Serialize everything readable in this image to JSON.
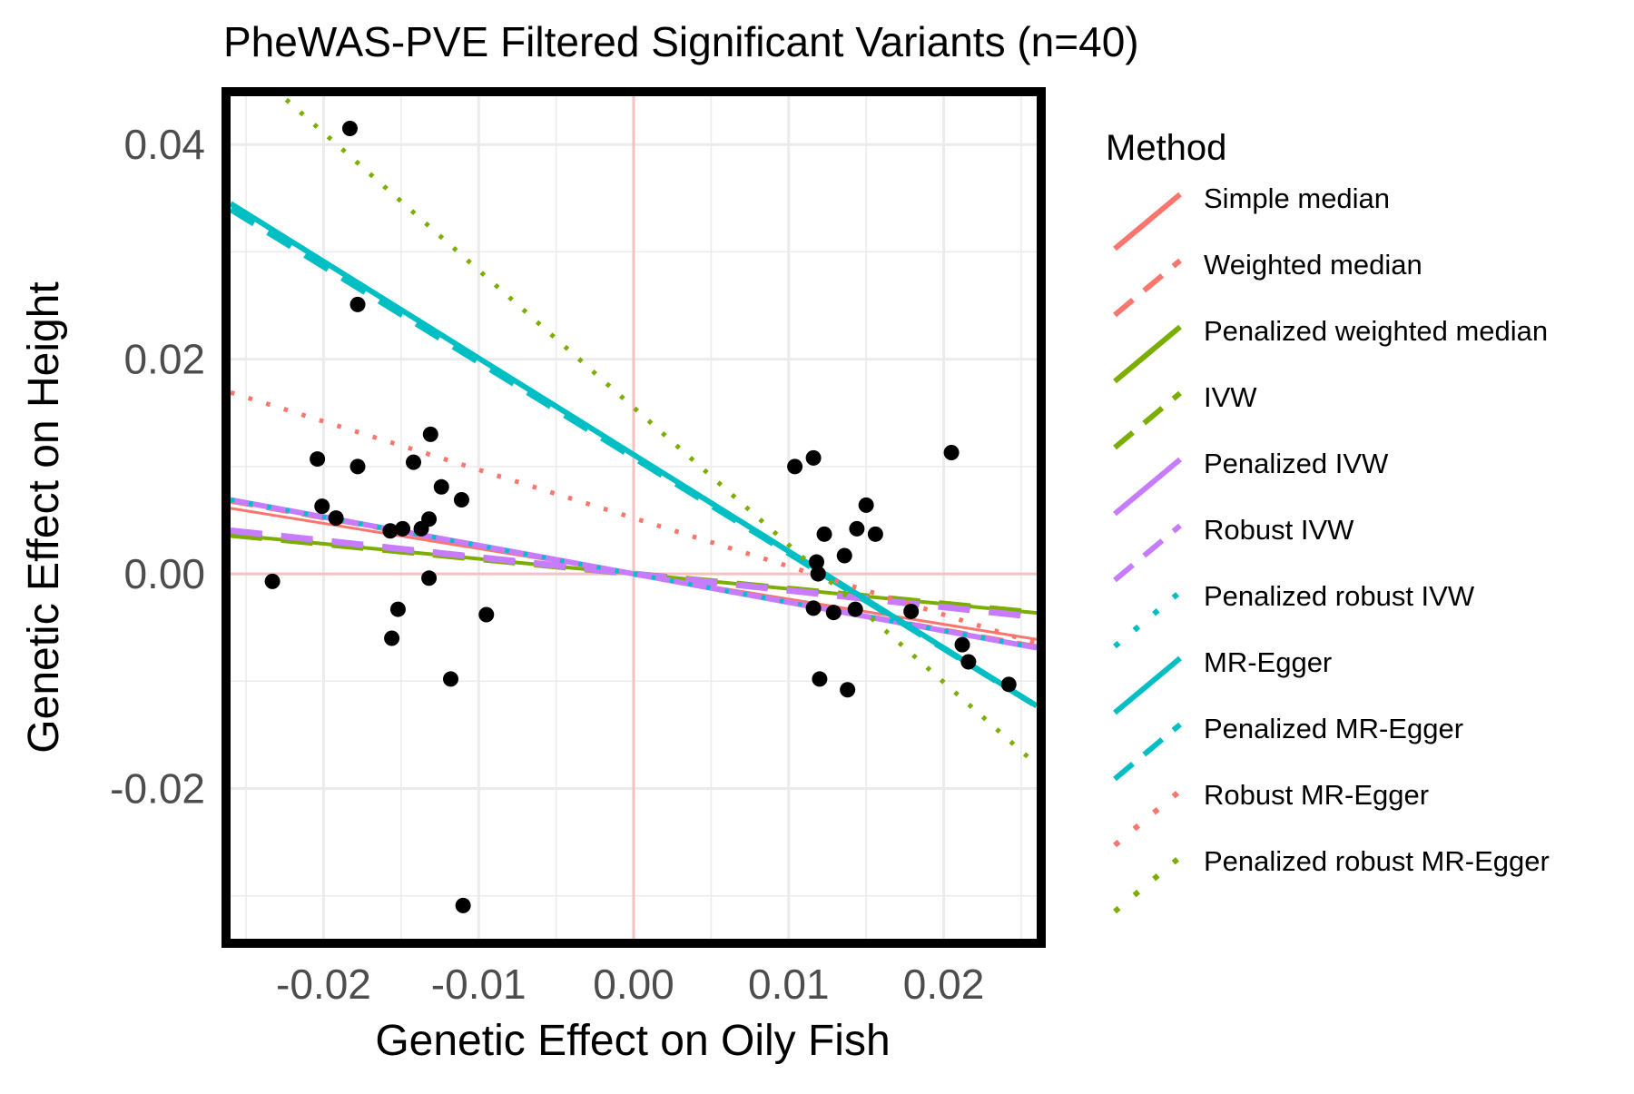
{
  "chart_data": {
    "type": "scatter",
    "title": "PheWAS-PVE Filtered Significant Variants (n=40)",
    "xlabel": "Genetic Effect on Oily Fish",
    "ylabel": "Genetic Effect on Height",
    "xlim": [
      -0.026,
      0.026
    ],
    "ylim": [
      -0.034,
      0.0445
    ],
    "x_ticks": [
      -0.02,
      -0.01,
      0.0,
      0.01,
      0.02
    ],
    "x_tick_labels": [
      "-0.02",
      "-0.01",
      "0.00",
      "0.01",
      "0.02"
    ],
    "y_ticks": [
      -0.02,
      0.0,
      0.02,
      0.04
    ],
    "y_tick_labels": [
      "-0.02",
      "0.00",
      "0.02",
      "0.04"
    ],
    "grid": true,
    "reference_lines": {
      "x": 0,
      "y": 0,
      "color": "#f4c2c2"
    },
    "points": [
      {
        "x": -0.0233,
        "y": -0.0007
      },
      {
        "x": -0.0204,
        "y": 0.0107
      },
      {
        "x": -0.0201,
        "y": 0.0063
      },
      {
        "x": -0.0192,
        "y": 0.0052
      },
      {
        "x": -0.0183,
        "y": 0.0415
      },
      {
        "x": -0.0178,
        "y": 0.0251
      },
      {
        "x": -0.0178,
        "y": 0.01
      },
      {
        "x": -0.0157,
        "y": 0.004
      },
      {
        "x": -0.0156,
        "y": -0.006
      },
      {
        "x": -0.0152,
        "y": -0.0033
      },
      {
        "x": -0.0149,
        "y": 0.0042
      },
      {
        "x": -0.0142,
        "y": 0.0104
      },
      {
        "x": -0.0137,
        "y": 0.0042
      },
      {
        "x": -0.0132,
        "y": 0.0051
      },
      {
        "x": -0.0132,
        "y": -0.0004
      },
      {
        "x": -0.0131,
        "y": 0.013
      },
      {
        "x": -0.0124,
        "y": 0.0081
      },
      {
        "x": -0.0118,
        "y": -0.0098
      },
      {
        "x": -0.0111,
        "y": 0.0069
      },
      {
        "x": -0.011,
        "y": -0.0309
      },
      {
        "x": -0.0095,
        "y": -0.0038
      },
      {
        "x": 0.0104,
        "y": 0.01
      },
      {
        "x": 0.0116,
        "y": 0.0108
      },
      {
        "x": 0.0118,
        "y": 0.0011
      },
      {
        "x": 0.0116,
        "y": -0.0032
      },
      {
        "x": 0.0119,
        "y": 0.0
      },
      {
        "x": 0.012,
        "y": -0.0098
      },
      {
        "x": 0.0123,
        "y": 0.0037
      },
      {
        "x": 0.0129,
        "y": -0.0036
      },
      {
        "x": 0.0136,
        "y": 0.0017
      },
      {
        "x": 0.0138,
        "y": -0.0108
      },
      {
        "x": 0.0143,
        "y": -0.0033
      },
      {
        "x": 0.0144,
        "y": 0.0042
      },
      {
        "x": 0.015,
        "y": 0.0064
      },
      {
        "x": 0.0156,
        "y": 0.0037
      },
      {
        "x": 0.0179,
        "y": -0.0035
      },
      {
        "x": 0.0205,
        "y": 0.0113
      },
      {
        "x": 0.0212,
        "y": -0.0066
      },
      {
        "x": 0.0216,
        "y": -0.0082
      },
      {
        "x": 0.0242,
        "y": -0.0103
      }
    ],
    "legend": {
      "title": "Method",
      "position": "right",
      "entries": [
        {
          "name": "Simple median",
          "color": "#F8766D",
          "dash": "solid"
        },
        {
          "name": "Weighted median",
          "color": "#F8766D",
          "dash": "longdash"
        },
        {
          "name": "Penalized weighted median",
          "color": "#7CAE00",
          "dash": "solid"
        },
        {
          "name": "IVW",
          "color": "#7CAE00",
          "dash": "longdash"
        },
        {
          "name": "Penalized IVW",
          "color": "#C77CFF",
          "dash": "solid"
        },
        {
          "name": "Robust IVW",
          "color": "#C77CFF",
          "dash": "longdash"
        },
        {
          "name": "Penalized robust IVW",
          "color": "#00BFC4",
          "dash": "dotted"
        },
        {
          "name": "MR-Egger",
          "color": "#00BFC4",
          "dash": "solid"
        },
        {
          "name": "Penalized MR-Egger",
          "color": "#00BFC4",
          "dash": "longdash"
        },
        {
          "name": "Robust MR-Egger",
          "color": "#F8766D",
          "dash": "dotted"
        },
        {
          "name": "Penalized robust MR-Egger",
          "color": "#7CAE00",
          "dash": "dotted"
        }
      ]
    },
    "fit_lines": [
      {
        "name": "Simple median",
        "intercept": 0.0,
        "slope": -0.235,
        "color": "#F8766D",
        "dash": "solid",
        "width": 3
      },
      {
        "name": "Weighted median",
        "intercept": 0.0,
        "slope": -0.26,
        "color": "#F8766D",
        "dash": "longdash",
        "width": 5
      },
      {
        "name": "Penalized weighted median",
        "intercept": 0.0,
        "slope": -0.14,
        "color": "#7CAE00",
        "dash": "solid",
        "width": 4
      },
      {
        "name": "IVW",
        "intercept": 0.0,
        "slope": -0.14,
        "color": "#7CAE00",
        "dash": "longdash",
        "width": 7
      },
      {
        "name": "Penalized IVW",
        "intercept": 0.0,
        "slope": -0.265,
        "color": "#C77CFF",
        "dash": "solid",
        "width": 6
      },
      {
        "name": "Robust IVW",
        "intercept": 0.0,
        "slope": -0.155,
        "color": "#C77CFF",
        "dash": "longdash",
        "width": 7
      },
      {
        "name": "Penalized robust IVW",
        "intercept": 0.0,
        "slope": -0.265,
        "color": "#00BFC4",
        "dash": "dotted",
        "width": 5
      },
      {
        "name": "MR-Egger",
        "intercept": 0.0111,
        "slope": -0.9,
        "color": "#00BFC4",
        "dash": "solid",
        "width": 6
      },
      {
        "name": "Penalized MR-Egger",
        "intercept": 0.0108,
        "slope": -0.89,
        "color": "#00BFC4",
        "dash": "longdash",
        "width": 6
      },
      {
        "name": "Robust MR-Egger",
        "intercept": 0.0052,
        "slope": -0.45,
        "color": "#F8766D",
        "dash": "dotted",
        "width": 5
      },
      {
        "name": "Penalized robust MR-Egger",
        "intercept": 0.0155,
        "slope": -1.28,
        "color": "#7CAE00",
        "dash": "dotted",
        "width": 5
      }
    ]
  }
}
